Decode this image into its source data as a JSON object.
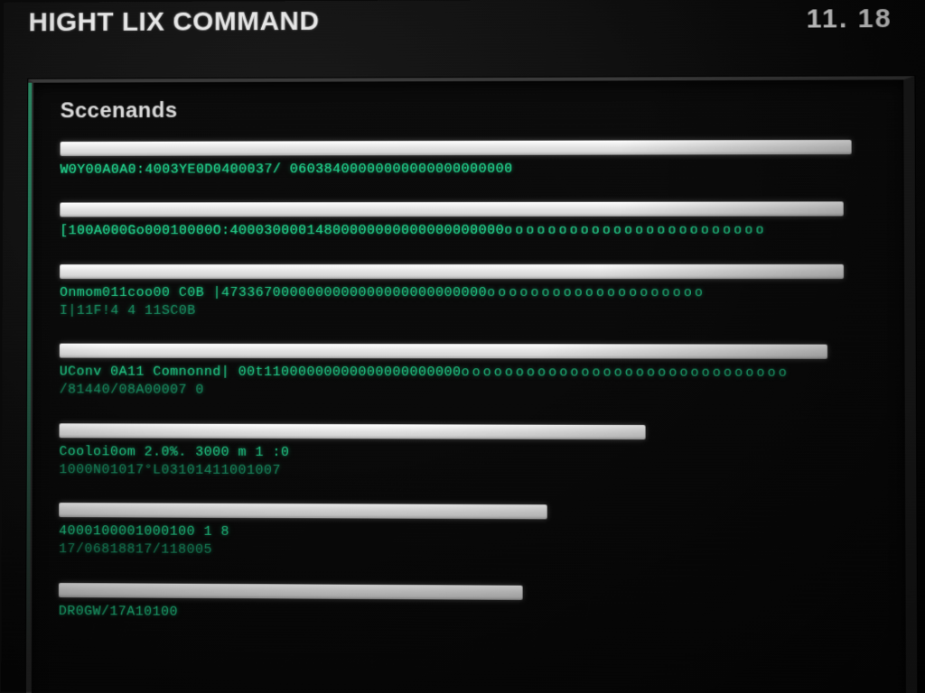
{
  "colors": {
    "background": "#0a0a0a",
    "panel_border": "#2a2a2a",
    "accent_green": "#22d08b",
    "accent_green_dim": "#1ca874",
    "bar_fill": "#e8e8e8",
    "text_light": "#e6e6e6"
  },
  "header": {
    "title": "HIGHT LIX COMMAND",
    "clock": "11. 18"
  },
  "panel": {
    "section_title": "Sccenands",
    "rows": [
      {
        "bar_width_pct": 97,
        "lines": [
          "W0Y00A0A0:4003YE0D0400037/ 06038400000000000000000000"
        ],
        "trail_dots": 0
      },
      {
        "bar_width_pct": 96,
        "lines": [
          "[100A000Go00010000O:40003000014800000000000000000000"
        ],
        "trail_dots": 24
      },
      {
        "bar_width_pct": 96,
        "lines": [
          "Onmom011coo00  C0B   |4733670000000000000000000000000",
          "I|11F!4 4 11SC0B"
        ],
        "trail_dots": 20
      },
      {
        "bar_width_pct": 94,
        "lines": [
          "UConv 0A11  Comnonnd| 00t11000000000000000000000",
          "/81440/08A00007 0"
        ],
        "trail_dots": 30
      },
      {
        "bar_width_pct": 72,
        "lines": [
          "Cooloi0om 2.0%. 3000 m 1  :0",
          "1000N01017°L03101411001007"
        ],
        "trail_dots": 0
      },
      {
        "bar_width_pct": 60,
        "lines": [
          "4000100001000100 1 8",
          "17/06818817/118005"
        ],
        "trail_dots": 0
      },
      {
        "bar_width_pct": 57,
        "lines": [
          "DR0GW/17A10100"
        ],
        "trail_dots": 0
      }
    ]
  }
}
